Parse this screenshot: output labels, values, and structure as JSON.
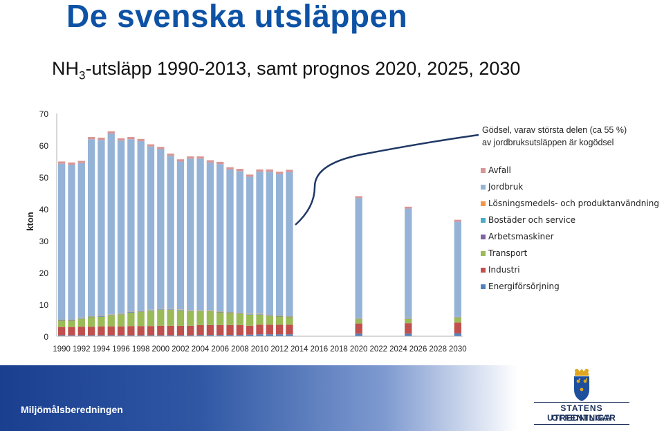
{
  "title": "De svenska utsläppen",
  "subtitle": {
    "main": "NH",
    "sub": "3",
    "rest": "-utsläpp 1990-2013, samt prognos 2020, 2025, 2030"
  },
  "footer": {
    "org": "Miljömålsberedningen"
  },
  "logo": {
    "line1": "STATENS OFFENTLIGA",
    "line2": "UTREDNINGAR"
  },
  "colors": {
    "accent": "#0d52a5",
    "arrow": "#1f3864"
  },
  "chart_data": {
    "type": "bar",
    "stacked": true,
    "ylabel": "kton",
    "ylim": [
      0,
      70
    ],
    "yticks": [
      0,
      10,
      20,
      30,
      40,
      50,
      60,
      70
    ],
    "grid": false,
    "legend_position": "right",
    "xticks": [
      "1990",
      "1992",
      "1994",
      "1996",
      "1998",
      "2000",
      "2002",
      "2004",
      "2006",
      "2008",
      "2010",
      "2012",
      "2014",
      "2016",
      "2018",
      "2020",
      "2022",
      "2024",
      "2026",
      "2028",
      "2030"
    ],
    "years": [
      1990,
      1991,
      1992,
      1993,
      1994,
      1995,
      1996,
      1997,
      1998,
      1999,
      2000,
      2001,
      2002,
      2003,
      2004,
      2005,
      2006,
      2007,
      2008,
      2009,
      2010,
      2011,
      2012,
      2013,
      2020,
      2025,
      2030
    ],
    "series": [
      {
        "name": "Energiförsörjning",
        "color": "#4f81bd",
        "values": [
          0.3,
          0.3,
          0.3,
          0.3,
          0.3,
          0.3,
          0.3,
          0.3,
          0.3,
          0.3,
          0.3,
          0.3,
          0.3,
          0.3,
          0.4,
          0.4,
          0.4,
          0.4,
          0.4,
          0.5,
          0.6,
          0.6,
          0.6,
          0.6,
          0.8,
          0.8,
          0.9
        ]
      },
      {
        "name": "Industri",
        "color": "#c0504d",
        "values": [
          2.6,
          2.6,
          2.7,
          2.7,
          2.8,
          2.8,
          2.8,
          2.9,
          2.9,
          2.9,
          3.0,
          3.0,
          3.0,
          3.0,
          3.1,
          3.1,
          3.1,
          3.1,
          3.1,
          2.8,
          3.0,
          3.0,
          3.0,
          3.0,
          3.2,
          3.3,
          3.4
        ]
      },
      {
        "name": "Transport",
        "color": "#9bbb59",
        "values": [
          2.0,
          2.0,
          2.5,
          3.0,
          3.0,
          3.5,
          3.8,
          4.2,
          4.5,
          4.8,
          5.0,
          5.0,
          4.8,
          4.6,
          4.4,
          4.4,
          4.0,
          3.8,
          3.6,
          3.5,
          3.2,
          2.8,
          2.6,
          2.4,
          1.4,
          1.4,
          1.5
        ]
      },
      {
        "name": "Arbetsmaskiner",
        "color": "#8064a2",
        "values": [
          0.1,
          0.1,
          0.1,
          0.1,
          0.1,
          0.1,
          0.1,
          0.1,
          0.1,
          0.1,
          0.1,
          0.1,
          0.1,
          0.1,
          0.1,
          0.1,
          0.1,
          0.1,
          0.1,
          0.1,
          0.1,
          0.1,
          0.1,
          0.1,
          0.1,
          0.1,
          0.1
        ]
      },
      {
        "name": "Bostäder och service",
        "color": "#4bacc6",
        "values": [
          0.1,
          0.1,
          0.1,
          0.1,
          0.1,
          0.1,
          0.1,
          0.1,
          0.1,
          0.1,
          0.1,
          0.1,
          0.1,
          0.1,
          0.1,
          0.1,
          0.1,
          0.1,
          0.1,
          0.1,
          0.1,
          0.1,
          0.1,
          0.1,
          0.1,
          0.1,
          0.1
        ]
      },
      {
        "name": "Lösningsmedels- och produktanvändning",
        "color": "#f79646",
        "values": [
          0.1,
          0.1,
          0.1,
          0.1,
          0.1,
          0.1,
          0.1,
          0.1,
          0.1,
          0.1,
          0.1,
          0.1,
          0.1,
          0.1,
          0.1,
          0.1,
          0.1,
          0.1,
          0.1,
          0.1,
          0.1,
          0.1,
          0.1,
          0.1,
          0.1,
          0.1,
          0.1
        ]
      },
      {
        "name": "Jordbruk",
        "color": "#95b3d7",
        "values": [
          49.0,
          48.7,
          48.6,
          55.6,
          55.3,
          56.8,
          54.3,
          54.2,
          53.3,
          51.3,
          50.2,
          48.1,
          46.5,
          47.6,
          47.6,
          46.4,
          46.3,
          44.8,
          44.5,
          43.0,
          44.6,
          45.0,
          44.5,
          45.3,
          37.7,
          34.3,
          29.9
        ]
      },
      {
        "name": "Avfall",
        "color": "#d99694",
        "values": [
          0.7,
          0.7,
          0.7,
          0.7,
          0.7,
          0.7,
          0.7,
          0.7,
          0.7,
          0.7,
          0.7,
          0.7,
          0.7,
          0.7,
          0.7,
          0.7,
          0.7,
          0.7,
          0.7,
          0.7,
          0.7,
          0.7,
          0.7,
          0.7,
          0.6,
          0.6,
          0.6
        ]
      }
    ],
    "annotation": {
      "line1": "Gödsel, varav största delen (ca 55 %)",
      "line2": "av jordbruksutsläppen är kogödsel"
    }
  }
}
